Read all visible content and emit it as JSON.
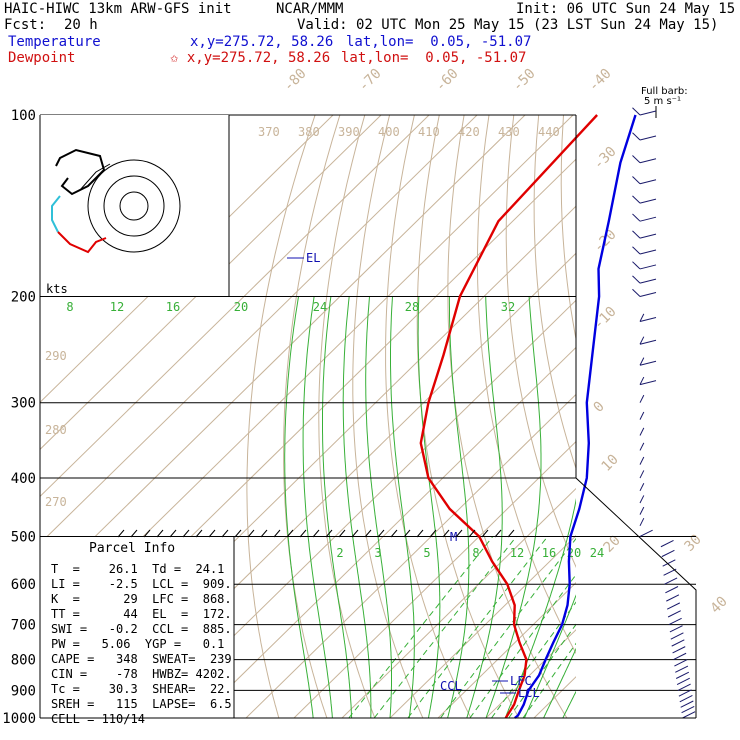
{
  "header": {
    "model": "HAIC-HIWC 13km ARW-GFS init",
    "org": "NCAR/MMM",
    "init": "Init: 06 UTC Sun 24 May 15",
    "fcst_label": "Fcst:",
    "fcst_value": "20 h",
    "valid": "Valid: 02 UTC Mon 25 May 15 (23 LST Sun 24 May 15)",
    "temp_label": "Temperature",
    "temp_xy": "x,y=275.72, 58.26",
    "temp_latlon": "lat,lon=  0.05, -51.07",
    "dew_label": "Dewpoint",
    "dew_xy": "✩ x,y=275.72, 58.26",
    "dew_latlon": "lat,lon=  0.05, -51.07"
  },
  "barb_legend": {
    "line1": "Full barb:",
    "line2": "5 m s⁻¹"
  },
  "hodograph": {
    "unit_label": "kts"
  },
  "chart_data": {
    "type": "line",
    "title": "",
    "y_axis": "pressure (hPa), log scale",
    "pressure_ticks": [
      100,
      200,
      300,
      400,
      500,
      600,
      700,
      800,
      900,
      1000
    ],
    "isotherm_labels": [
      "-80",
      "-70",
      "-60",
      "-50",
      "-40",
      "-30",
      "-20",
      "-10",
      "0",
      "10",
      "20",
      "30",
      "40"
    ],
    "theta_labels": [
      "370",
      "380",
      "390",
      "400",
      "410",
      "420",
      "430",
      "440"
    ],
    "theta_left_labels": [
      "290",
      "280",
      "270"
    ],
    "moist_adiabat_labels": [
      "8",
      "12",
      "16",
      "20",
      "24",
      "28",
      "32"
    ],
    "mixing_ratio_labels": [
      "2",
      "3",
      "5",
      "8",
      "12",
      "16",
      "20",
      "24"
    ],
    "series": [
      {
        "name": "Temperature",
        "color": "#0000e0",
        "points": [
          [
            100,
            -77
          ],
          [
            120,
            -70
          ],
          [
            150,
            -60
          ],
          [
            180,
            -52
          ],
          [
            200,
            -46
          ],
          [
            250,
            -35
          ],
          [
            300,
            -26
          ],
          [
            350,
            -17
          ],
          [
            400,
            -10
          ],
          [
            450,
            -5
          ],
          [
            500,
            -1
          ],
          [
            550,
            4
          ],
          [
            600,
            9
          ],
          [
            650,
            13
          ],
          [
            700,
            16
          ],
          [
            750,
            18
          ],
          [
            800,
            20
          ],
          [
            850,
            22
          ],
          [
            900,
            23
          ],
          [
            950,
            25
          ],
          [
            990,
            26.1
          ],
          [
            1000,
            26
          ]
        ]
      },
      {
        "name": "Dewpoint",
        "color": "#e00000",
        "points": [
          [
            100,
            -85
          ],
          [
            150,
            -83
          ],
          [
            200,
            -75
          ],
          [
            250,
            -66
          ],
          [
            300,
            -59
          ],
          [
            350,
            -52
          ],
          [
            400,
            -43
          ],
          [
            450,
            -32
          ],
          [
            500,
            -20
          ],
          [
            550,
            -12
          ],
          [
            600,
            -4
          ],
          [
            650,
            2
          ],
          [
            700,
            6
          ],
          [
            750,
            11
          ],
          [
            800,
            16
          ],
          [
            850,
            19
          ],
          [
            900,
            21
          ],
          [
            950,
            23
          ],
          [
            1000,
            24.1
          ]
        ]
      }
    ],
    "levels": {
      "EL": "EL",
      "LFC": "LFC",
      "LCL": "LCL",
      "CCL": "CCL",
      "M": "M"
    },
    "wind_barbs_levels_hPa": [
      100,
      110,
      120,
      130,
      140,
      150,
      160,
      170,
      180,
      190,
      200,
      220,
      240,
      260,
      280,
      300,
      320,
      340,
      360,
      380,
      400,
      420,
      440,
      460,
      480,
      500,
      520,
      540,
      560,
      580,
      600,
      620,
      640,
      660,
      680,
      700,
      720,
      740,
      760,
      780,
      800,
      820,
      840,
      860,
      880,
      900,
      920,
      940,
      960,
      980,
      1000
    ]
  },
  "parcel_info": {
    "title": "Parcel Info",
    "rows": [
      "T  =    26.1  Td =  24.1",
      "LI =    -2.5  LCL =  909.",
      "K  =      29  LFC =  868.",
      "TT =      44  EL  =  172.",
      "SWI =   -0.2  CCL =  885.",
      "PW =   5.06  YGP =   0.1",
      "CAPE =   348  SWEAT=  239",
      "CIN =    -78  HWBZ= 4202.",
      "Tc =    30.3  SHEAR=  22.",
      "SREH =   115  LAPSE=  6.5",
      "CELL = 110/14"
    ]
  }
}
